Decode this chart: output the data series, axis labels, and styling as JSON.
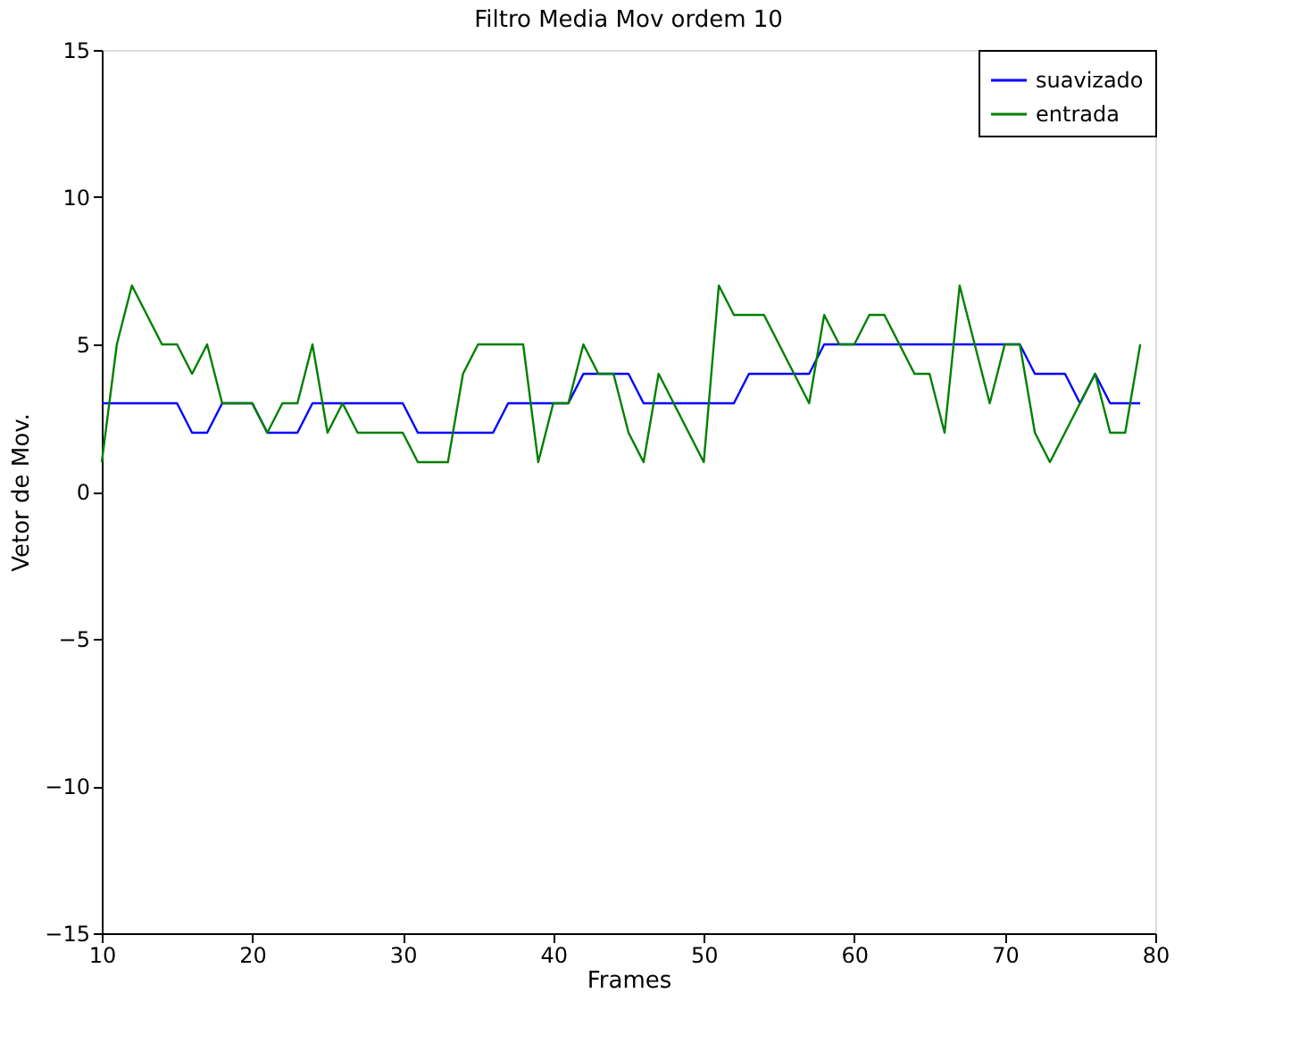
{
  "chart_data": {
    "type": "line",
    "title": "Filtro Media Mov ordem 10",
    "xlabel": "Frames",
    "ylabel": "Vetor de Mov.",
    "x": [
      10,
      11,
      12,
      13,
      14,
      15,
      16,
      17,
      18,
      19,
      20,
      21,
      22,
      23,
      24,
      25,
      26,
      27,
      28,
      29,
      30,
      31,
      32,
      33,
      34,
      35,
      36,
      37,
      38,
      39,
      40,
      41,
      42,
      43,
      44,
      45,
      46,
      47,
      48,
      49,
      50,
      51,
      52,
      53,
      54,
      55,
      56,
      57,
      58,
      59,
      60,
      61,
      62,
      63,
      64,
      65,
      66,
      67,
      68,
      69,
      70,
      71,
      72,
      73,
      74,
      75,
      76,
      77,
      78,
      79
    ],
    "series": [
      {
        "name": "suavizado",
        "color": "#0000ff",
        "values": [
          3,
          3,
          3,
          3,
          3,
          3,
          2,
          2,
          3,
          3,
          3,
          2,
          2,
          2,
          3,
          3,
          3,
          3,
          3,
          3,
          3,
          2,
          2,
          2,
          2,
          2,
          2,
          3,
          3,
          3,
          3,
          3,
          4,
          4,
          4,
          4,
          3,
          3,
          3,
          3,
          3,
          3,
          3,
          4,
          4,
          4,
          4,
          4,
          5,
          5,
          5,
          5,
          5,
          5,
          5,
          5,
          5,
          5,
          5,
          5,
          5,
          5,
          4,
          4,
          4,
          3,
          4,
          3,
          3,
          3
        ]
      },
      {
        "name": "entrada",
        "color": "#008000",
        "values": [
          1,
          5,
          7,
          6,
          5,
          5,
          4,
          5,
          3,
          3,
          3,
          2,
          3,
          3,
          5,
          2,
          3,
          2,
          2,
          2,
          2,
          1,
          1,
          1,
          4,
          5,
          5,
          5,
          5,
          1,
          3,
          3,
          5,
          4,
          4,
          2,
          1,
          4,
          3,
          2,
          1,
          7,
          6,
          6,
          6,
          5,
          4,
          3,
          6,
          5,
          5,
          6,
          6,
          5,
          4,
          4,
          2,
          7,
          5,
          3,
          5,
          5,
          2,
          1,
          2,
          3,
          4,
          2,
          2,
          5
        ]
      }
    ],
    "xlim": [
      10,
      80
    ],
    "xticks": [
      10,
      20,
      30,
      40,
      50,
      60,
      70,
      80
    ],
    "ylim": [
      -15,
      15
    ],
    "yticks": [
      -15,
      -10,
      -5,
      0,
      5,
      10,
      15
    ],
    "grid": false,
    "legend": "top right",
    "marker": "none",
    "line_style": "solid"
  }
}
